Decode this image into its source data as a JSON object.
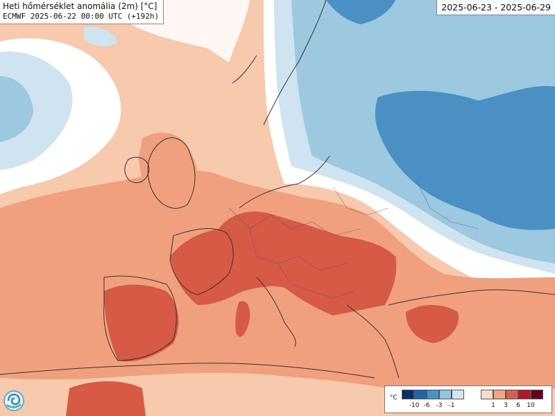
{
  "title": {
    "line1": "Heti hőmérséklet anomália (2m) [°C]",
    "line2": "ECMWF 2025-06-22 00:00 UTC (+192h)"
  },
  "date_range": "2025-06-23 - 2025-06-29",
  "legend": {
    "unit": "°C",
    "cold_colors": [
      "#08306b",
      "#2166ac",
      "#4393c3",
      "#92c5de",
      "#d1e5f0"
    ],
    "cold_ticks": [
      "-10",
      "-6",
      "-3",
      "-1"
    ],
    "warm_colors": [
      "#fddbc7",
      "#f4a582",
      "#d6604d",
      "#b2182b",
      "#67001f"
    ],
    "warm_ticks": [
      "1",
      "3",
      "6",
      "10"
    ]
  },
  "colors": {
    "neutral": "#ffffff",
    "warm_light": "#f7c9ad",
    "warm_medium": "#f0a07e",
    "warm_strong": "#d65a45",
    "cold_light": "#cfe3f0",
    "cold_medium": "#9cc8e0",
    "cold_strong": "#4a90c4"
  },
  "logo": "ecmwf-logo-icon"
}
